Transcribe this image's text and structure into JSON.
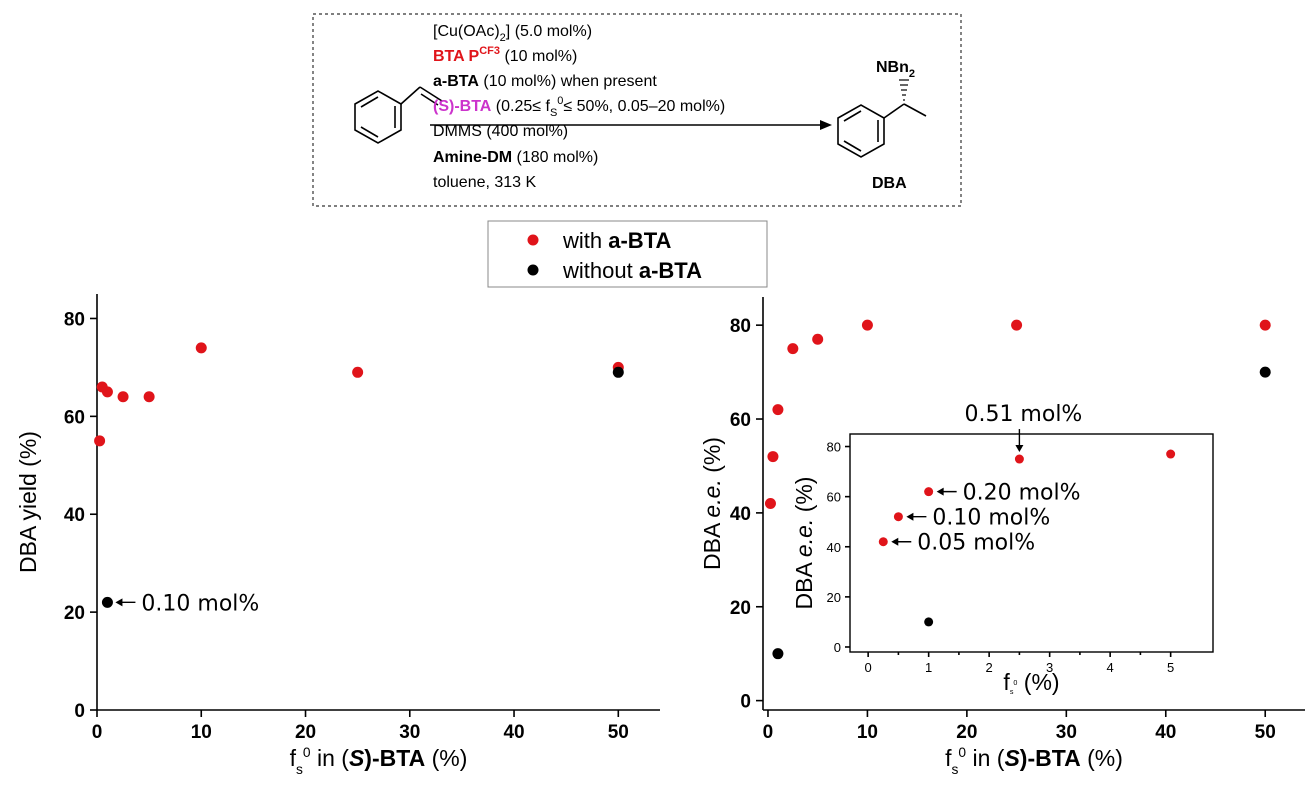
{
  "scheme": {
    "conditions": [
      {
        "parts": [
          {
            "t": "[Cu(OAc)",
            "c": "#000",
            "b": false
          },
          {
            "t": "2",
            "c": "#000",
            "b": false,
            "sub": true
          },
          {
            "t": "] (5.0 mol%)",
            "c": "#000",
            "b": false
          }
        ]
      },
      {
        "parts": [
          {
            "t": "BTA P",
            "c": "#e0141a",
            "b": true
          },
          {
            "t": "CF3",
            "c": "#e0141a",
            "b": true,
            "sup": true
          },
          {
            "t": " (10 mol%)",
            "c": "#000",
            "b": false
          }
        ]
      },
      {
        "parts": [
          {
            "t": "a-BTA",
            "c": "#000",
            "b": true
          },
          {
            "t": " (10 mol%) when present",
            "c": "#000",
            "b": false
          }
        ]
      },
      {
        "parts": [
          {
            "t": "(S)-BTA",
            "c": "#cc33cc",
            "b": true
          },
          {
            "t": " (0.25≤ f",
            "c": "#000",
            "b": false
          },
          {
            "t": "S",
            "c": "#000",
            "b": false,
            "sub": true
          },
          {
            "t": "0",
            "c": "#000",
            "b": false,
            "sup": true
          },
          {
            "t": "≤ 50%, 0.05–20 mol%)",
            "c": "#000",
            "b": false
          }
        ]
      },
      {
        "parts": [
          {
            "t": "DMMS (400 mol%)",
            "c": "#000",
            "b": false
          }
        ]
      },
      {
        "parts": [
          {
            "t": "Amine-DM",
            "c": "#000",
            "b": true
          },
          {
            "t": " (180 mol%)",
            "c": "#000",
            "b": false
          }
        ]
      },
      {
        "parts": [
          {
            "t": "toluene, 313 K",
            "c": "#000",
            "b": false
          }
        ]
      }
    ],
    "product_substituent": "NBn",
    "product_substituent_sub": "2",
    "product_label": "DBA"
  },
  "legend": {
    "with_prefix": "with ",
    "with_bold": "a-BTA",
    "without_prefix": "without ",
    "without_bold": "a-BTA"
  },
  "colors": {
    "red": "#e0141a",
    "black": "#000000"
  },
  "chart_data": [
    {
      "type": "scatter",
      "xlabel_f": "f",
      "xlabel_sub": "s",
      "xlabel_sup": "0",
      "xlabel_mid": " in (",
      "xlabel_S": "S",
      "xlabel_end": ")-BTA",
      "xlabel_unit": " (%)",
      "ylabel": "DBA yield (%)",
      "xlim": [
        0,
        54
      ],
      "ylim": [
        0,
        85
      ],
      "xticks": [
        0,
        10,
        20,
        30,
        40,
        50
      ],
      "yticks": [
        0,
        20,
        40,
        60,
        80
      ],
      "series": [
        {
          "color": "red",
          "points": [
            [
              0.25,
              55
            ],
            [
              0.5,
              66
            ],
            [
              1,
              65
            ],
            [
              2.5,
              64
            ],
            [
              5,
              64
            ],
            [
              10,
              74
            ],
            [
              25,
              69
            ],
            [
              50,
              70
            ]
          ]
        },
        {
          "color": "black",
          "points": [
            [
              1,
              22
            ],
            [
              50,
              69
            ]
          ]
        }
      ],
      "annotations": [
        {
          "text": "0.10 mol%",
          "x": 1,
          "y": 22
        }
      ]
    },
    {
      "type": "scatter",
      "xlabel_f": "f",
      "xlabel_sub": "s",
      "xlabel_sup": "0",
      "xlabel_mid": " in (",
      "xlabel_S": "S",
      "xlabel_end": ")-BTA",
      "xlabel_unit": " (%)",
      "ylabel_pre": "DBA ",
      "ylabel_it": "e.e.",
      "ylabel_unit": " (%)",
      "xlim": [
        -0.5,
        54
      ],
      "ylim": [
        -2,
        86
      ],
      "xticks": [
        0,
        10,
        20,
        30,
        40,
        50
      ],
      "yticks": [
        0,
        20,
        40,
        60,
        80
      ],
      "series": [
        {
          "color": "red",
          "points": [
            [
              0.25,
              42
            ],
            [
              0.5,
              52
            ],
            [
              1,
              62
            ],
            [
              2.5,
              75
            ],
            [
              5,
              77
            ],
            [
              10,
              80
            ],
            [
              25,
              80
            ],
            [
              50,
              80
            ]
          ]
        },
        {
          "color": "black",
          "points": [
            [
              1,
              10
            ],
            [
              50,
              70
            ]
          ]
        }
      ]
    },
    {
      "type": "scatter",
      "inset": true,
      "xlabel_f": "f",
      "xlabel_sub": "s",
      "xlabel_sup": "0",
      "xlabel_unit": " (%)",
      "ylabel_pre": "DBA ",
      "ylabel_it": "e.e.",
      "ylabel_unit": " (%)",
      "xlim": [
        -0.3,
        5.7
      ],
      "ylim": [
        -2,
        85
      ],
      "xticks": [
        0,
        1,
        2,
        3,
        4,
        5
      ],
      "yticks": [
        0,
        20,
        40,
        60,
        80
      ],
      "series": [
        {
          "color": "red",
          "points": [
            [
              0.25,
              42
            ],
            [
              0.5,
              52
            ],
            [
              1,
              62
            ],
            [
              2.5,
              75
            ],
            [
              5,
              77
            ]
          ]
        },
        {
          "color": "black",
          "points": [
            [
              1,
              10
            ]
          ]
        }
      ],
      "annotations": [
        {
          "text": "0.05 mol%",
          "x": 0.25,
          "y": 42
        },
        {
          "text": "0.10 mol%",
          "x": 0.5,
          "y": 52
        },
        {
          "text": "0.20 mol%",
          "x": 1,
          "y": 62
        },
        {
          "text": "0.51 mol%",
          "x": 2.5,
          "y": 75
        }
      ]
    }
  ]
}
